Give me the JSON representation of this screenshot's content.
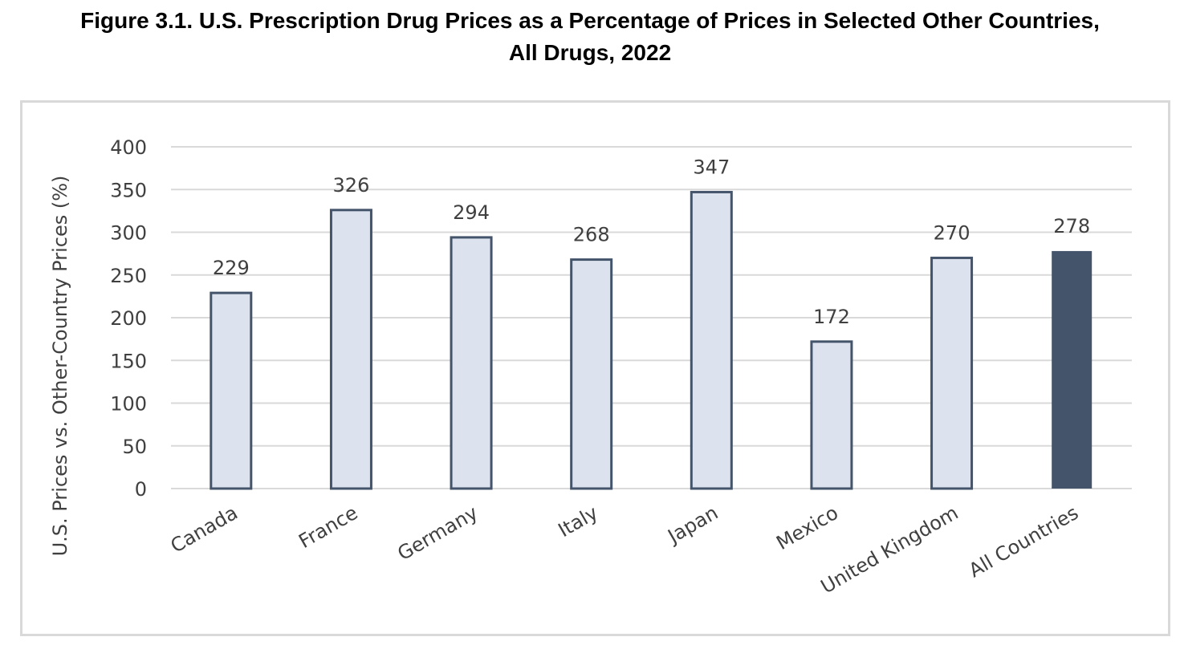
{
  "figure": {
    "title_line1": "Figure 3.1. U.S. Prescription Drug Prices as a Percentage of Prices in Selected Other Countries,",
    "title_line2": "All Drugs, 2022"
  },
  "colors": {
    "country_bar_fill": "#dce3ef",
    "country_bar_stroke": "#44546a",
    "all_countries_bar_fill": "#44546a",
    "gridline": "#d9d9d9",
    "text": "#404040"
  },
  "chart_data": {
    "type": "bar",
    "title": "Figure 3.1. U.S. Prescription Drug Prices as a Percentage of Prices in Selected Other Countries, All Drugs, 2022",
    "xlabel": "",
    "ylabel": "U.S. Prices vs. Other-Country Prices (%)",
    "categories": [
      "Canada",
      "France",
      "Germany",
      "Italy",
      "Japan",
      "Mexico",
      "United Kingdom",
      "All Countries"
    ],
    "values": [
      229,
      326,
      294,
      268,
      347,
      172,
      270,
      278
    ],
    "highlight_category": "All Countries",
    "ylim": [
      0,
      400
    ],
    "yticks": [
      0,
      50,
      100,
      150,
      200,
      250,
      300,
      350,
      400
    ],
    "data_labels": true,
    "grid": true,
    "legend": "none"
  }
}
